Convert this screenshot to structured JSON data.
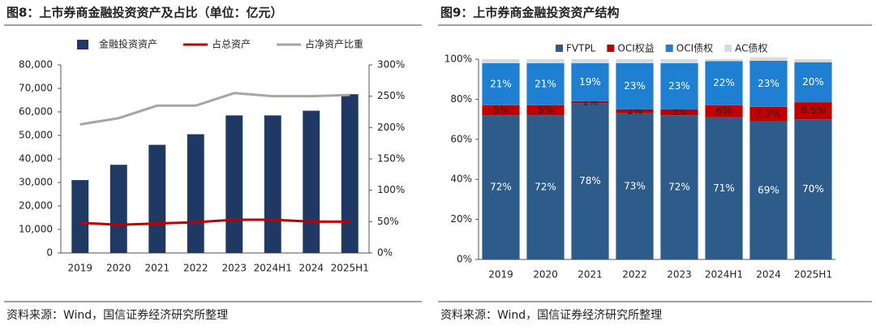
{
  "chart_data": [
    {
      "type": "bar",
      "title": "图8：上市券商金融投资资产及占比（单位：亿元）",
      "source": "资料来源：Wind，国信证券经济研究所整理",
      "categories": [
        "2019",
        "2020",
        "2021",
        "2022",
        "2023",
        "2024H1",
        "2024",
        "2025H1"
      ],
      "series": [
        {
          "name": "金融投资资产",
          "type": "bar",
          "color": "#1f3864",
          "values": [
            31000,
            37500,
            46000,
            50500,
            58500,
            58500,
            60500,
            67500
          ]
        },
        {
          "name": "占总资产",
          "type": "line",
          "axis": "y2",
          "color": "#c00000",
          "values": [
            48,
            45,
            47,
            49,
            53,
            53,
            50,
            50
          ]
        },
        {
          "name": "占净资产比重",
          "type": "line",
          "axis": "y2",
          "color": "#a6a6a6",
          "values": [
            205,
            215,
            235,
            235,
            255,
            250,
            250,
            252
          ]
        }
      ],
      "ylim": [
        0,
        80000
      ],
      "yticks": [
        0,
        {
          "value": 10000,
          "label": "10,000"
        },
        {
          "value": 20000,
          "label": "20,000"
        },
        {
          "value": 30000,
          "label": "30,000"
        },
        {
          "value": 40000,
          "label": "40,000"
        },
        {
          "value": 50000,
          "label": "50,000"
        },
        {
          "value": 60000,
          "label": "60,000"
        },
        {
          "value": 70000,
          "label": "70,000"
        },
        {
          "value": 80000,
          "label": "80,000"
        }
      ],
      "y2lim": [
        0,
        300
      ],
      "y2ticks": [
        {
          "value": 0,
          "label": "0%"
        },
        {
          "value": 50,
          "label": "50%"
        },
        {
          "value": 100,
          "label": "100%"
        },
        {
          "value": 150,
          "label": "150%"
        },
        {
          "value": 200,
          "label": "200%"
        },
        {
          "value": 250,
          "label": "250%"
        },
        {
          "value": 300,
          "label": "300%"
        }
      ]
    },
    {
      "type": "stacked_bar",
      "title": "图9：上市券商金融投资资产结构",
      "source": "资料来源：Wind，国信证券经济研究所整理",
      "categories": [
        "2019",
        "2020",
        "2021",
        "2022",
        "2023",
        "2024H1",
        "2024",
        "2025H1"
      ],
      "series": [
        {
          "name": "FVTPL",
          "color": "#2e5c8a",
          "values": [
            72,
            72,
            78,
            73,
            72,
            71,
            69,
            70
          ],
          "value_labels": [
            "72%",
            "72%",
            "78%",
            "73%",
            "72%",
            "71%",
            "69%",
            "70%"
          ]
        },
        {
          "name": "OCI权益",
          "color": "#c00000",
          "values": [
            5,
            5,
            1,
            2,
            3,
            6,
            7.2,
            8.5
          ],
          "value_labels": [
            "5%",
            "5%",
            "1%",
            "2%",
            "3%",
            "6%",
            "7.2%",
            "8.5%"
          ]
        },
        {
          "name": "OCI债权",
          "color": "#1f7fd0",
          "values": [
            21,
            21,
            19,
            23,
            23,
            22,
            23,
            20
          ],
          "value_labels": [
            "21%",
            "21%",
            "19%",
            "23%",
            "23%",
            "22%",
            "23%",
            "20%"
          ]
        },
        {
          "name": "AC债权",
          "color": "#d9d9d9",
          "values": [
            2,
            2,
            2,
            2,
            2,
            1,
            1.8,
            1.5
          ]
        }
      ],
      "ylim": [
        0,
        100
      ],
      "yticks": [
        {
          "value": 0,
          "label": "0%"
        },
        {
          "value": 20,
          "label": "20%"
        },
        {
          "value": 40,
          "label": "40%"
        },
        {
          "value": 60,
          "label": "60%"
        },
        {
          "value": 80,
          "label": "80%"
        },
        {
          "value": 100,
          "label": "100%"
        }
      ]
    }
  ]
}
